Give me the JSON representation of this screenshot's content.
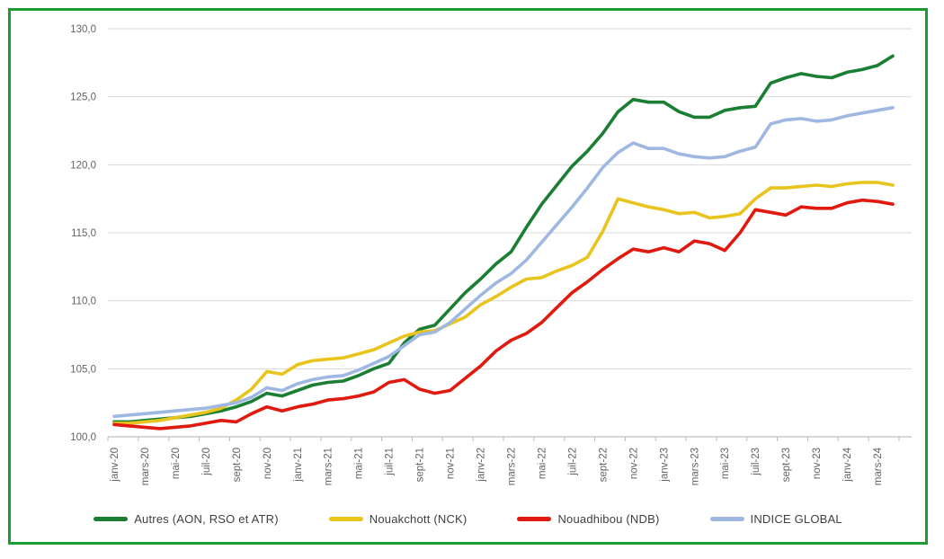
{
  "frame": {
    "border_color": "#1e9a33",
    "background": "#ffffff"
  },
  "axis": {
    "gridline_color": "#d9d9d9",
    "axis_line_color": "#bfbfbf",
    "tick_mark_color": "#bfbfbf",
    "tick_label_color": "#636363"
  },
  "legend": {
    "position": "bottom",
    "text_color": "#3f3f3f"
  },
  "chart_data": {
    "type": "line",
    "title": "",
    "xlabel": "",
    "ylabel": "",
    "ylim": [
      100,
      130
    ],
    "y_ticks": [
      100,
      105,
      110,
      115,
      120,
      125,
      130
    ],
    "y_tick_labels": [
      "100,0",
      "105,0",
      "110,0",
      "115,0",
      "120,0",
      "125,0",
      "130,0"
    ],
    "grid": true,
    "x_tick_labels": [
      "janv-20",
      "mars-20",
      "mai-20",
      "juil-20",
      "sept-20",
      "nov-20",
      "janv-21",
      "mars-21",
      "mai-21",
      "juil-21",
      "sept-21",
      "nov-21",
      "janv-22",
      "mars-22",
      "mai-22",
      "juil-22",
      "sept-22",
      "nov-22",
      "janv-23",
      "mars-23",
      "mai-23",
      "juil-23",
      "sept-23",
      "nov-23",
      "janv-24",
      "mars-24"
    ],
    "months": [
      "janv-20",
      "févr-20",
      "mars-20",
      "avr-20",
      "mai-20",
      "juin-20",
      "juil-20",
      "août-20",
      "sept-20",
      "oct-20",
      "nov-20",
      "déc-20",
      "janv-21",
      "févr-21",
      "mars-21",
      "avr-21",
      "mai-21",
      "juin-21",
      "juil-21",
      "août-21",
      "sept-21",
      "oct-21",
      "nov-21",
      "déc-21",
      "janv-22",
      "févr-22",
      "mars-22",
      "avr-22",
      "mai-22",
      "juin-22",
      "juil-22",
      "août-22",
      "sept-22",
      "oct-22",
      "nov-22",
      "déc-22",
      "janv-23",
      "févr-23",
      "mars-23",
      "avr-23",
      "mai-23",
      "juin-23",
      "juil-23",
      "août-23",
      "sept-23",
      "oct-23",
      "nov-23",
      "déc-23",
      "janv-24",
      "févr-24",
      "mars-24",
      "avr-24"
    ],
    "series": [
      {
        "name": "Autres (AON, RSO et ATR)",
        "color": "#1a7e33",
        "values": [
          101.1,
          101.1,
          101.2,
          101.3,
          101.4,
          101.5,
          101.7,
          101.9,
          102.2,
          102.6,
          103.2,
          103.0,
          103.4,
          103.8,
          104.0,
          104.1,
          104.5,
          105.0,
          105.4,
          106.9,
          107.9,
          108.2,
          109.4,
          110.6,
          111.6,
          112.7,
          113.6,
          115.4,
          117.1,
          118.5,
          119.9,
          121.0,
          122.3,
          123.9,
          124.8,
          124.6,
          124.6,
          123.9,
          123.5,
          123.5,
          124.0,
          124.2,
          124.3,
          126.0,
          126.4,
          126.7,
          126.5,
          126.4,
          126.8,
          127.0,
          127.3,
          128.0
        ]
      },
      {
        "name": "Nouakchott (NCK)",
        "color": "#e8c41c",
        "values": [
          101.0,
          101.0,
          101.1,
          101.2,
          101.4,
          101.6,
          101.8,
          102.1,
          102.7,
          103.5,
          104.8,
          104.6,
          105.3,
          105.6,
          105.7,
          105.8,
          106.1,
          106.4,
          106.9,
          107.4,
          107.7,
          107.8,
          108.3,
          108.8,
          109.7,
          110.3,
          111.0,
          111.6,
          111.7,
          112.2,
          112.6,
          113.2,
          115.1,
          117.5,
          117.2,
          116.9,
          116.7,
          116.4,
          116.5,
          116.1,
          116.2,
          116.4,
          117.5,
          118.3,
          118.3,
          118.4,
          118.5,
          118.4,
          118.6,
          118.7,
          118.7,
          118.5
        ]
      },
      {
        "name": "Nouadhibou (NDB)",
        "color": "#e01a0f",
        "values": [
          100.9,
          100.8,
          100.7,
          100.6,
          100.7,
          100.8,
          101.0,
          101.2,
          101.1,
          101.7,
          102.2,
          101.9,
          102.2,
          102.4,
          102.7,
          102.8,
          103.0,
          103.3,
          104.0,
          104.2,
          103.5,
          103.2,
          103.4,
          104.3,
          105.2,
          106.3,
          107.1,
          107.6,
          108.4,
          109.5,
          110.6,
          111.4,
          112.3,
          113.1,
          113.8,
          113.6,
          113.9,
          113.6,
          114.4,
          114.2,
          113.7,
          115.0,
          116.7,
          116.5,
          116.3,
          116.9,
          116.8,
          116.8,
          117.2,
          117.4,
          117.3,
          117.1
        ]
      },
      {
        "name": "INDICE GLOBAL",
        "color": "#9fb8e2",
        "values": [
          101.5,
          101.6,
          101.7,
          101.8,
          101.9,
          102.0,
          102.1,
          102.3,
          102.5,
          102.9,
          103.6,
          103.4,
          103.9,
          104.2,
          104.4,
          104.5,
          104.9,
          105.4,
          105.9,
          106.7,
          107.5,
          107.7,
          108.4,
          109.4,
          110.4,
          111.3,
          112.0,
          113.0,
          114.3,
          115.6,
          116.9,
          118.3,
          119.8,
          120.9,
          121.6,
          121.2,
          121.2,
          120.8,
          120.6,
          120.5,
          120.6,
          121.0,
          121.3,
          123.0,
          123.3,
          123.4,
          123.2,
          123.3,
          123.6,
          123.8,
          124.0,
          124.2
        ]
      }
    ],
    "legend_position": "bottom"
  }
}
